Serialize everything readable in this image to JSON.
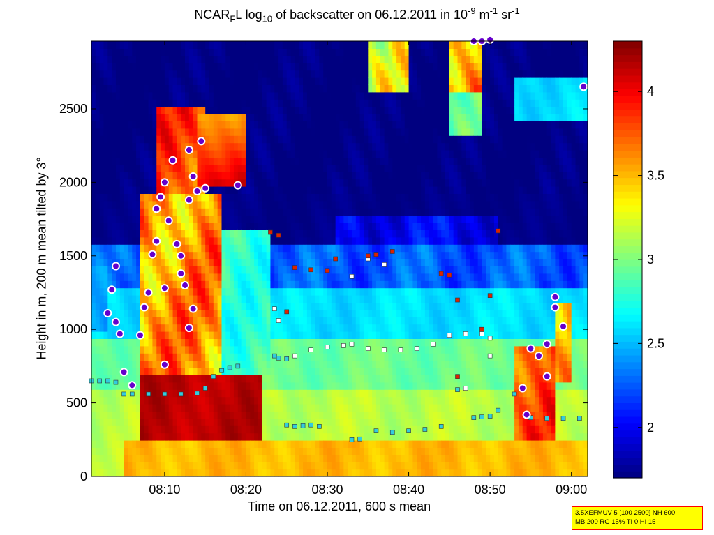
{
  "chart_data": {
    "type": "heatmap",
    "title": "NCAR_F L log10 of backscatter on 06.12.2011 in 10^-9 m^-1 sr^-1",
    "title_parts": {
      "a": "NCAR",
      "b": "F",
      "c": "L log",
      "d": "10",
      "e": " of backscatter on 06.12.2011 in 10",
      "f": "-9",
      "g": " m",
      "h": "-1",
      "i": " sr",
      "j": "-1"
    },
    "xlabel": "Time on 06.12.2011, 600 s mean",
    "ylabel": "Height in m, 200 m mean tilted by 3°",
    "xlim": [
      "08:01",
      "09:02"
    ],
    "ylim": [
      0,
      2960
    ],
    "x_ticks": [
      "08:10",
      "08:20",
      "08:30",
      "08:40",
      "08:50",
      "09:00"
    ],
    "y_ticks": [
      0,
      500,
      1000,
      1500,
      2000,
      2500
    ],
    "colorbar": {
      "min": 1.7,
      "max": 4.3,
      "ticks": [
        2,
        2.5,
        3,
        3.5,
        4
      ],
      "colormap": "jet"
    },
    "marker_series": [
      {
        "marker": "cyan-square",
        "points": [
          [
            "08:01",
            650
          ],
          [
            "08:02",
            650
          ],
          [
            "08:03",
            650
          ],
          [
            "08:04",
            640
          ],
          [
            "08:05",
            560
          ],
          [
            "08:06",
            560
          ],
          [
            "08:08",
            560
          ],
          [
            "08:10",
            560
          ],
          [
            "08:12",
            560
          ],
          [
            "08:14",
            565
          ],
          [
            "08:15",
            600
          ],
          [
            "08:16",
            680
          ],
          [
            "08:17",
            720
          ],
          [
            "08:18",
            740
          ],
          [
            "08:19",
            750
          ],
          [
            "08:23.5",
            820
          ],
          [
            "08:24",
            805
          ],
          [
            "08:25",
            800
          ],
          [
            "08:25",
            350
          ],
          [
            "08:26",
            340
          ],
          [
            "08:27",
            345
          ],
          [
            "08:28",
            350
          ],
          [
            "08:29",
            340
          ],
          [
            "08:33",
            250
          ],
          [
            "08:34",
            255
          ],
          [
            "08:36",
            310
          ],
          [
            "08:38",
            300
          ],
          [
            "08:40",
            310
          ],
          [
            "08:42",
            320
          ],
          [
            "08:44",
            340
          ],
          [
            "08:46",
            590
          ],
          [
            "08:48",
            400
          ],
          [
            "08:49",
            405
          ],
          [
            "08:50",
            410
          ],
          [
            "08:51",
            450
          ],
          [
            "08:53",
            560
          ],
          [
            "08:55",
            400
          ],
          [
            "08:57",
            395
          ],
          [
            "08:59",
            395
          ],
          [
            "09:01",
            395
          ]
        ]
      },
      {
        "marker": "white-square",
        "points": [
          [
            "08:23.5",
            1140
          ],
          [
            "08:24",
            1060
          ],
          [
            "08:26",
            820
          ],
          [
            "08:28",
            860
          ],
          [
            "08:30",
            880
          ],
          [
            "08:32",
            890
          ],
          [
            "08:33",
            900
          ],
          [
            "08:35",
            870
          ],
          [
            "08:37",
            860
          ],
          [
            "08:39",
            860
          ],
          [
            "08:41",
            870
          ],
          [
            "08:43",
            900
          ],
          [
            "08:45",
            960
          ],
          [
            "08:47",
            970
          ],
          [
            "08:49",
            970
          ],
          [
            "08:50",
            940
          ],
          [
            "08:33",
            1360
          ],
          [
            "08:35",
            1480
          ],
          [
            "08:36",
            1510
          ],
          [
            "08:37",
            1440
          ],
          [
            "08:47",
            600
          ],
          [
            "08:50",
            820
          ]
        ]
      },
      {
        "marker": "red-square",
        "points": [
          [
            "08:23",
            1660
          ],
          [
            "08:24",
            1640
          ],
          [
            "08:25",
            1120
          ],
          [
            "08:26",
            1420
          ],
          [
            "08:28",
            1405
          ],
          [
            "08:30",
            1400
          ],
          [
            "08:31",
            1480
          ],
          [
            "08:35",
            1500
          ],
          [
            "08:36",
            1510
          ],
          [
            "08:38",
            1530
          ],
          [
            "08:44",
            1380
          ],
          [
            "08:45",
            1370
          ],
          [
            "08:46",
            1200
          ],
          [
            "08:49",
            1000
          ],
          [
            "08:50",
            1230
          ],
          [
            "08:51",
            1670
          ],
          [
            "08:46",
            680
          ]
        ]
      },
      {
        "marker": "purple-circle",
        "points": [
          [
            "08:03",
            1110
          ],
          [
            "08:03.5",
            1270
          ],
          [
            "08:04",
            1430
          ],
          [
            "08:04",
            1050
          ],
          [
            "08:04.5",
            970
          ],
          [
            "08:05",
            710
          ],
          [
            "08:06",
            620
          ],
          [
            "08:07",
            960
          ],
          [
            "08:07.5",
            1150
          ],
          [
            "08:08",
            1250
          ],
          [
            "08:08.5",
            1510
          ],
          [
            "08:09",
            1600
          ],
          [
            "08:09",
            1820
          ],
          [
            "08:09.5",
            1900
          ],
          [
            "08:10",
            2000
          ],
          [
            "08:10.5",
            1740
          ],
          [
            "08:10",
            1280
          ],
          [
            "08:10",
            760
          ],
          [
            "08:11",
            2150
          ],
          [
            "08:11.5",
            1580
          ],
          [
            "08:12",
            1500
          ],
          [
            "08:12",
            1380
          ],
          [
            "08:12.5",
            1300
          ],
          [
            "08:13",
            1880
          ],
          [
            "08:13",
            2220
          ],
          [
            "08:13.5",
            2040
          ],
          [
            "08:14",
            1940
          ],
          [
            "08:14.5",
            2280
          ],
          [
            "08:15",
            1960
          ],
          [
            "08:13",
            1010
          ],
          [
            "08:13.5",
            1140
          ],
          [
            "08:19",
            1980
          ],
          [
            "08:48",
            2960
          ],
          [
            "08:49",
            2960
          ],
          [
            "08:50",
            2970
          ],
          [
            "08:54",
            600
          ],
          [
            "08:54.5",
            420
          ],
          [
            "08:55",
            870
          ],
          [
            "08:56",
            820
          ],
          [
            "08:57",
            900
          ],
          [
            "08:57",
            680
          ],
          [
            "08:58",
            1150
          ],
          [
            "08:58",
            1220
          ],
          [
            "08:59",
            1020
          ],
          [
            "09:01.5",
            2650
          ]
        ]
      }
    ],
    "legend": "none",
    "grid": false
  },
  "info_box": {
    "line1": "3.5XEFMUV 5 [100 2500] NH 600",
    "line2": "MB 200 RG 15% TI 0 HI 15"
  }
}
